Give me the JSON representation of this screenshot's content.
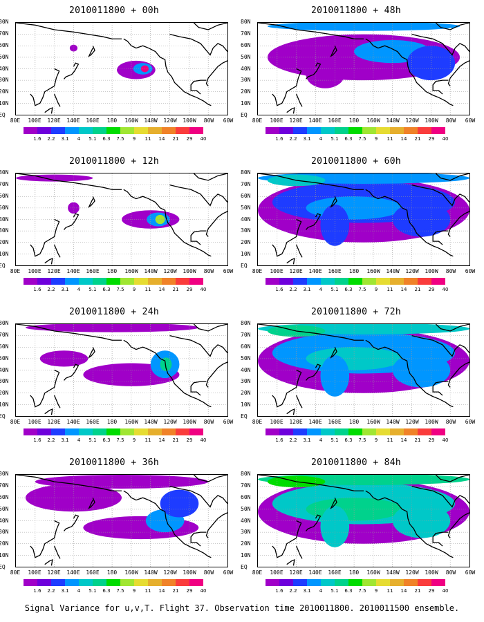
{
  "panels": [
    {
      "title": "2010011800 + 00h",
      "level": 0
    },
    {
      "title": "2010011800 + 12h",
      "level": 1
    },
    {
      "title": "2010011800 + 24h",
      "level": 2
    },
    {
      "title": "2010011800 + 36h",
      "level": 3
    },
    {
      "title": "2010011800 + 48h",
      "level": 4
    },
    {
      "title": "2010011800 + 60h",
      "level": 5
    },
    {
      "title": "2010011800 + 72h",
      "level": 6
    },
    {
      "title": "2010011800 + 84h",
      "level": 7
    }
  ],
  "lat_labels": [
    "80N",
    "70N",
    "60N",
    "50N",
    "40N",
    "30N",
    "20N",
    "10N",
    "EQ"
  ],
  "lon_labels": [
    "80E",
    "100E",
    "120E",
    "140E",
    "160E",
    "180",
    "160W",
    "140W",
    "120W",
    "100W",
    "80W",
    "60W"
  ],
  "colorbar": {
    "labels": [
      "1.6",
      "2.2",
      "3.1",
      "4",
      "5.1",
      "6.3",
      "7.5",
      "9",
      "11",
      "14",
      "21",
      "29",
      "40"
    ],
    "colors": [
      "#a000c8",
      "#6e00dc",
      "#1e3cff",
      "#0096ff",
      "#00c8c8",
      "#00d28c",
      "#00dc00",
      "#a0e632",
      "#e6dc32",
      "#e6af2d",
      "#f08228",
      "#fa3c3c",
      "#f00082"
    ]
  },
  "caption": "Signal Variance for u,v,T. Flight 37. Observation time 2010011800. 2010011500 ensemble."
}
